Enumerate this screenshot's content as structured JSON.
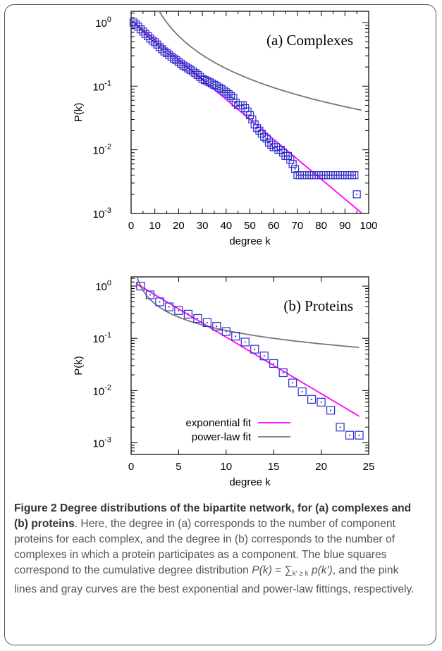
{
  "chart_data": [
    {
      "panel": "(a) Complexes",
      "type": "scatter",
      "xlabel": "degree k",
      "ylabel": "P(k)",
      "xlim": [
        0,
        100
      ],
      "ylim": [
        0.001,
        1.5
      ],
      "yscale": "log",
      "xticks": [
        "0",
        "10",
        "20",
        "30",
        "40",
        "50",
        "60",
        "70",
        "80",
        "90",
        "100"
      ],
      "yticks": [
        "10",
        "10",
        "10",
        "10"
      ],
      "ytick_exponents": [
        "0",
        "-1",
        "-2",
        "-3"
      ],
      "series": [
        {
          "marker": "square",
          "color": "#2b2bd6",
          "x": [
            1,
            2,
            3,
            4,
            5,
            6,
            7,
            8,
            9,
            10,
            11,
            12,
            13,
            14,
            15,
            16,
            17,
            18,
            19,
            20,
            21,
            22,
            23,
            24,
            25,
            26,
            27,
            28,
            29,
            30,
            31,
            32,
            33,
            34,
            35,
            36,
            37,
            38,
            39,
            40,
            41,
            42,
            43,
            44,
            45,
            46,
            47,
            48,
            49,
            50,
            51,
            52,
            53,
            54,
            55,
            56,
            57,
            58,
            59,
            60,
            61,
            62,
            63,
            64,
            65,
            66,
            67,
            68,
            69,
            70,
            71,
            72,
            73,
            74,
            75,
            76,
            77,
            78,
            79,
            80,
            81,
            82,
            83,
            84,
            85,
            86,
            87,
            88,
            89,
            90,
            91,
            92,
            93,
            94,
            95
          ],
          "y": [
            1.0,
            0.93,
            0.86,
            0.78,
            0.72,
            0.66,
            0.61,
            0.56,
            0.52,
            0.49,
            0.45,
            0.41,
            0.38,
            0.35,
            0.33,
            0.31,
            0.29,
            0.27,
            0.255,
            0.24,
            0.225,
            0.21,
            0.2,
            0.19,
            0.18,
            0.17,
            0.16,
            0.15,
            0.14,
            0.13,
            0.125,
            0.12,
            0.115,
            0.11,
            0.105,
            0.1,
            0.095,
            0.09,
            0.085,
            0.08,
            0.075,
            0.07,
            0.065,
            0.055,
            0.05,
            0.05,
            0.05,
            0.045,
            0.04,
            0.035,
            0.03,
            0.025,
            0.022,
            0.02,
            0.018,
            0.016,
            0.015,
            0.013,
            0.012,
            0.011,
            0.011,
            0.01,
            0.01,
            0.009,
            0.008,
            0.008,
            0.007,
            0.006,
            0.005,
            0.004,
            0.004,
            0.004,
            0.004,
            0.004,
            0.004,
            0.004,
            0.004,
            0.004,
            0.004,
            0.004,
            0.004,
            0.004,
            0.004,
            0.004,
            0.004,
            0.004,
            0.004,
            0.004,
            0.004,
            0.004,
            0.004,
            0.004,
            0.004,
            0.004,
            0.002
          ]
        },
        {
          "type": "line",
          "color": "#ff00ff",
          "model": "exponential",
          "a": 1.1,
          "b": 0.072
        },
        {
          "type": "line",
          "color": "#777777",
          "model": "power-law",
          "a": 100,
          "b": 1.7
        }
      ]
    },
    {
      "panel": "(b) Proteins",
      "type": "scatter",
      "xlabel": "degree k",
      "ylabel": "P(k)",
      "xlim": [
        0,
        25
      ],
      "ylim": [
        0.0006,
        1.5
      ],
      "yscale": "log",
      "xticks": [
        "0",
        "5",
        "10",
        "15",
        "20",
        "25"
      ],
      "yticks": [
        "10",
        "10",
        "10",
        "10"
      ],
      "ytick_exponents": [
        "0",
        "-1",
        "-2",
        "-3"
      ],
      "legend": {
        "position": "bottom-left",
        "entries": [
          "exponential fit",
          "power-law fit"
        ]
      },
      "series": [
        {
          "marker": "square",
          "color": "#2b2bd6",
          "x": [
            1,
            2,
            3,
            4,
            5,
            6,
            7,
            8,
            9,
            10,
            11,
            12,
            13,
            14,
            15,
            16,
            17,
            18,
            19,
            20,
            21,
            22,
            23,
            24
          ],
          "y": [
            1.0,
            0.68,
            0.5,
            0.4,
            0.34,
            0.29,
            0.24,
            0.2,
            0.17,
            0.135,
            0.11,
            0.085,
            0.062,
            0.046,
            0.033,
            0.022,
            0.014,
            0.0095,
            0.0068,
            0.006,
            0.0042,
            0.002,
            0.0014,
            0.0014
          ]
        },
        {
          "name": "exponential fit",
          "type": "line",
          "color": "#ff00ff",
          "model": "exponential",
          "a": 1.27,
          "b": 0.249
        },
        {
          "name": "power-law fit",
          "type": "line",
          "color": "#777777",
          "model": "power-law",
          "a": 1.0,
          "b": 0.85
        }
      ]
    }
  ],
  "caption": {
    "bold": "Figure 2 Degree distributions of the bipartite network, for (a) complexes and (b) proteins",
    "text1": ". Here, the degree in (a) corresponds to the number of component proteins for each complex, and the degree in (b) corresponds to the number of complexes in which a protein participates as a component. The blue squares correspond to the cumulative degree distribution ",
    "formula_lhs": "P(k)",
    "formula_eq": " = ∑",
    "formula_sub": "k′ ≥ k",
    "formula_rhs": " p(k′)",
    "text2": ", and the pink lines and gray curves are the best exponential and power-law fittings, respectively."
  }
}
